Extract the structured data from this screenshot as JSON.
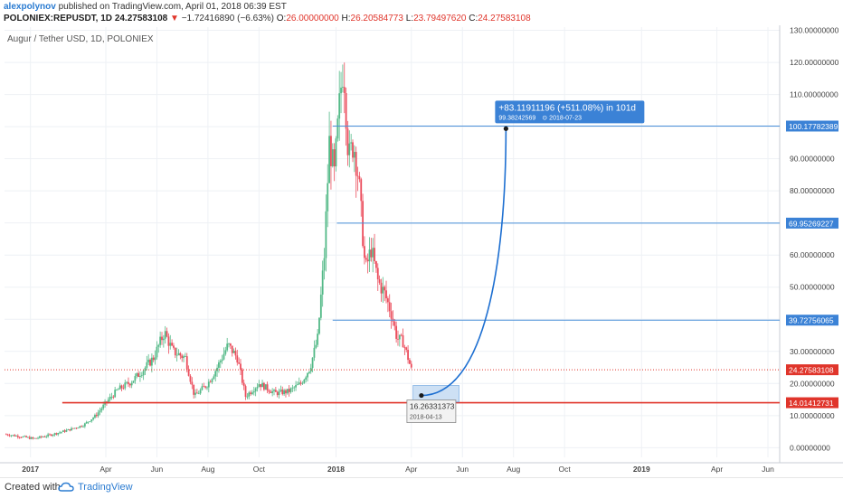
{
  "header": {
    "author": "alexpolynov",
    "published": "published on TradingView.com, April 01, 2018 06:39 EST",
    "symbol": "POLONIEX:REPUSDT, 1D",
    "last": "24.27583108",
    "arrow": "▼",
    "change": "−1.72416890 (−6.63%)",
    "o_label": "O:",
    "o_value": "26.00000000",
    "h_label": "H:",
    "h_value": "26.20584773",
    "l_label": "L:",
    "l_value": "23.79497620",
    "c_label": "C:",
    "c_value": "24.27583108"
  },
  "footer": {
    "created_with": "Created with",
    "brand": "TradingView",
    "logo_icon": "tradingview-cloud-icon"
  },
  "colors": {
    "up": "#53b987",
    "down": "#eb4d5c",
    "support": "#e0352b",
    "levels": "#4a90d9",
    "projection": "#1d6fd1",
    "label_bg": "#3b82d6",
    "support_label_bg": "#e0352b",
    "grid": "#eef1f5"
  },
  "chart_data": {
    "type": "candlestick",
    "title": "Augur / Tether USD, 1D, POLONIEX",
    "x": {
      "tick_labels": [
        "2017",
        "Apr",
        "Jun",
        "Aug",
        "Oct",
        "2018",
        "Apr",
        "Jun",
        "Aug",
        "Oct",
        "2019",
        "Apr",
        "Jun"
      ],
      "tick_dates": [
        "2017-01-01",
        "2017-04-01",
        "2017-06-01",
        "2017-08-01",
        "2017-10-01",
        "2018-01-01",
        "2018-04-01",
        "2018-06-01",
        "2018-08-01",
        "2018-10-01",
        "2019-01-01",
        "2019-04-01",
        "2019-06-01"
      ],
      "range": [
        "2016-12-01",
        "2019-06-15"
      ]
    },
    "y": {
      "ylim": [
        -3,
        131
      ],
      "tick_values": [
        0,
        10,
        20,
        30,
        40,
        50,
        60,
        70,
        80,
        90,
        100,
        110,
        120,
        130
      ],
      "tick_labels": [
        "0.00000000",
        "10.00000000",
        "20.00000000",
        "30.00000000",
        "40.00000000",
        "50.00000000",
        "60.00000000",
        "70.00000000",
        "80.00000000",
        "90.00000000",
        "100.00000000",
        "110.00000000",
        "120.00000000",
        "130.00000000"
      ]
    },
    "grid": true,
    "close_path": [
      [
        "2016-12-01",
        4.2
      ],
      [
        "2016-12-20",
        3.5
      ],
      [
        "2017-01-05",
        2.8
      ],
      [
        "2017-01-25",
        4.0
      ],
      [
        "2017-02-15",
        5.5
      ],
      [
        "2017-03-05",
        7.0
      ],
      [
        "2017-03-20",
        10.0
      ],
      [
        "2017-04-01",
        14.0
      ],
      [
        "2017-04-15",
        18.0
      ],
      [
        "2017-05-01",
        20.5
      ],
      [
        "2017-05-15",
        24.0
      ],
      [
        "2017-05-28",
        28.0
      ],
      [
        "2017-06-10",
        36.0
      ],
      [
        "2017-06-20",
        30.0
      ],
      [
        "2017-07-05",
        28.0
      ],
      [
        "2017-07-16",
        16.0
      ],
      [
        "2017-08-01",
        20.0
      ],
      [
        "2017-08-12",
        25.0
      ],
      [
        "2017-08-25",
        32.0
      ],
      [
        "2017-09-05",
        28.0
      ],
      [
        "2017-09-15",
        16.0
      ],
      [
        "2017-10-01",
        20.0
      ],
      [
        "2017-10-20",
        17.0
      ],
      [
        "2017-11-05",
        17.5
      ],
      [
        "2017-11-20",
        20.0
      ],
      [
        "2017-12-01",
        25.0
      ],
      [
        "2017-12-10",
        34.0
      ],
      [
        "2017-12-18",
        60.0
      ],
      [
        "2017-12-24",
        95.0
      ],
      [
        "2017-12-30",
        85.0
      ],
      [
        "2018-01-06",
        110.0
      ],
      [
        "2018-01-10",
        120.0
      ],
      [
        "2018-01-16",
        90.0
      ],
      [
        "2018-01-22",
        95.0
      ],
      [
        "2018-01-28",
        84.0
      ],
      [
        "2018-02-05",
        55.0
      ],
      [
        "2018-02-12",
        62.0
      ],
      [
        "2018-02-20",
        52.0
      ],
      [
        "2018-02-28",
        48.0
      ],
      [
        "2018-03-08",
        42.0
      ],
      [
        "2018-03-15",
        34.0
      ],
      [
        "2018-03-22",
        33.0
      ],
      [
        "2018-03-28",
        28.0
      ],
      [
        "2018-04-01",
        24.28
      ]
    ],
    "candle_days": 2,
    "horizontal_lines": [
      {
        "value": 100.17782389,
        "label": "100.17782389",
        "from": "2017-12-28",
        "style": "solid",
        "color": "levels"
      },
      {
        "value": 69.95269227,
        "label": "69.95269227",
        "from": "2018-01-02",
        "style": "solid",
        "color": "levels"
      },
      {
        "value": 39.72756065,
        "label": "39.72756065",
        "from": "2017-12-28",
        "style": "solid",
        "color": "levels"
      },
      {
        "value": 14.01412731,
        "label": "14.01412731",
        "from": "2017-02-08",
        "style": "solid-thick",
        "color": "support"
      },
      {
        "value": 24.27583108,
        "label": "24.27583108",
        "from": "2016-12-01",
        "style": "dotted",
        "color": "support"
      }
    ],
    "projection": {
      "start": {
        "date": "2018-04-13",
        "value": 16.26331373
      },
      "end": {
        "date": "2018-07-23",
        "value": 99.38242569
      },
      "box": {
        "from": "2018-04-03",
        "to": "2018-05-28",
        "low": 14.2,
        "high": 19.4
      },
      "start_label": "16.26331373",
      "start_date_label": "2018-04-13",
      "end_label_main": "+83.11911196 (+511.08%) in 101d",
      "end_label_sub": "99.38242569",
      "end_date_label": "⊙ 2018-07-23"
    }
  }
}
